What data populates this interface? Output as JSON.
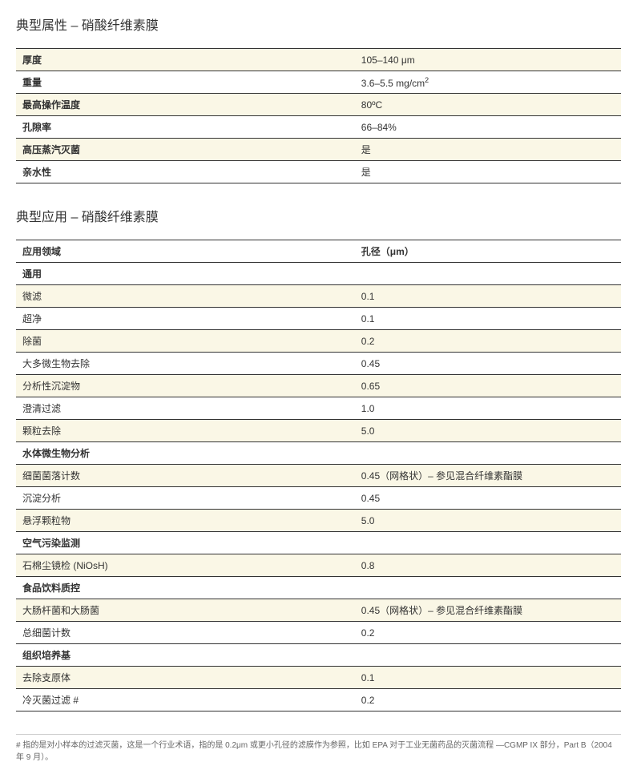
{
  "section1": {
    "title": "典型属性 – 硝酸纤维素膜",
    "rows": [
      {
        "label": "厚度",
        "value": "105–140 μm",
        "stripe": true
      },
      {
        "label": "重量",
        "value_html": "3.6–5.5 mg/cm²",
        "stripe": false
      },
      {
        "label": "最高操作温度",
        "value": "80ºC",
        "stripe": true
      },
      {
        "label": "孔隙率",
        "value": "66–84%",
        "stripe": false
      },
      {
        "label": "高压蒸汽灭菌",
        "value": "是",
        "stripe": true
      },
      {
        "label": "亲水性",
        "value": "是",
        "stripe": false
      }
    ]
  },
  "section2": {
    "title": "典型应用 – 硝酸纤维素膜",
    "header": {
      "col1": "应用领域",
      "col2": "孔径（μm）"
    },
    "groups": [
      {
        "name": "通用",
        "rows": [
          {
            "label": "微滤",
            "value": "0.1",
            "stripe": true
          },
          {
            "label": "超净",
            "value": "0.1",
            "stripe": false
          },
          {
            "label": "除菌",
            "value": "0.2",
            "stripe": true
          },
          {
            "label": "大多微生物去除",
            "value": "0.45",
            "stripe": false
          },
          {
            "label": "分析性沉淀物",
            "value": "0.65",
            "stripe": true
          },
          {
            "label": "澄清过滤",
            "value": "1.0",
            "stripe": false
          },
          {
            "label": "颗粒去除",
            "value": "5.0",
            "stripe": true
          }
        ]
      },
      {
        "name": "水体微生物分析",
        "rows": [
          {
            "label": "细菌菌落计数",
            "value": "0.45（网格状）– 参见混合纤维素酯膜",
            "stripe": true
          },
          {
            "label": "沉淀分析",
            "value": "0.45",
            "stripe": false
          },
          {
            "label": "悬浮颗粒物",
            "value": "5.0",
            "stripe": true
          }
        ]
      },
      {
        "name": "空气污染监测",
        "rows": [
          {
            "label": "石棉尘镜检 (NiOsH)",
            "value": "0.8",
            "stripe": true
          }
        ]
      },
      {
        "name": "食品饮料质控",
        "rows": [
          {
            "label": "大肠杆菌和大肠菌",
            "value": "0.45（网格状）– 参见混合纤维素酯膜",
            "stripe": true
          },
          {
            "label": "总细菌计数",
            "value": "0.2",
            "stripe": false
          }
        ]
      },
      {
        "name": "组织培养基",
        "rows": [
          {
            "label": "去除支原体",
            "value": "0.1",
            "stripe": true
          },
          {
            "label": "冷灭菌过滤 #",
            "value": "0.2",
            "stripe": false
          }
        ]
      }
    ]
  },
  "footnote": "# 指的是对小样本的过滤灭菌，这是一个行业术语，指的是 0.2μm 或更小孔径的滤膜作为参照，比如 EPA 对于工业无菌药品的灭菌流程 —CGMP IX 部分，Part B（2004 年 9 月）。"
}
